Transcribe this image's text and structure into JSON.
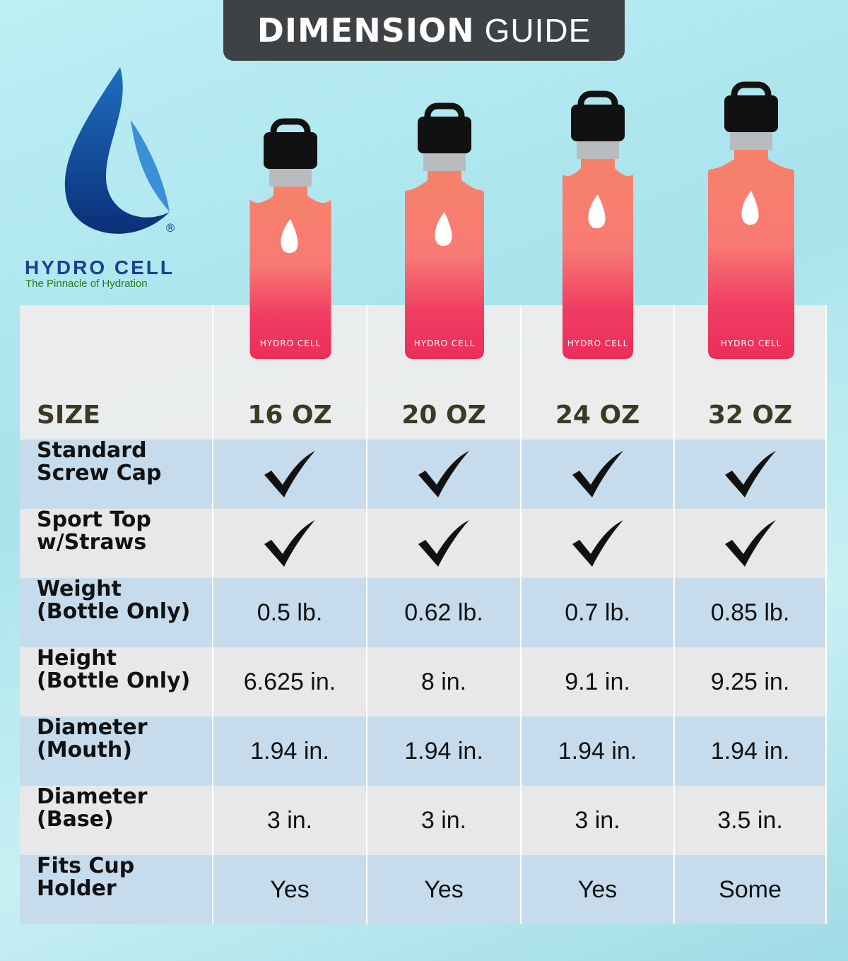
{
  "header": {
    "title_bold": "DIMENSION",
    "title_light": "GUIDE"
  },
  "logo": {
    "brand": "HYDRO CELL",
    "registered": "®",
    "tagline": "The Pinnacle of Hydration"
  },
  "bottle_brand": "HYDRO CELL",
  "table": {
    "header": [
      "SIZE",
      "16 OZ",
      "20 OZ",
      "24 OZ",
      "32 OZ"
    ],
    "rows": [
      {
        "label": [
          "Standard",
          "Screw Cap"
        ],
        "cells": [
          true,
          true,
          true,
          true
        ]
      },
      {
        "label": [
          "Sport Top",
          "w/Straws"
        ],
        "cells": [
          true,
          true,
          true,
          true
        ]
      },
      {
        "label": [
          "Weight",
          "(Bottle Only)"
        ],
        "cells": [
          "0.5 lb.",
          "0.62 lb.",
          "0.7 lb.",
          "0.85 lb."
        ]
      },
      {
        "label": [
          "Height",
          "(Bottle Only)"
        ],
        "cells": [
          "6.625 in.",
          "8 in.",
          "9.1 in.",
          "9.25 in."
        ]
      },
      {
        "label": [
          "Diameter",
          "(Mouth)"
        ],
        "cells": [
          "1.94 in.",
          "1.94 in.",
          "1.94 in.",
          "1.94 in."
        ]
      },
      {
        "label": [
          "Diameter",
          "(Base)"
        ],
        "cells": [
          "3 in.",
          "3 in.",
          "3 in.",
          "3.5 in."
        ]
      },
      {
        "label": [
          "Fits Cup",
          "Holder"
        ],
        "cells": [
          "Yes",
          "Yes",
          "Yes",
          "Some"
        ]
      }
    ]
  }
}
